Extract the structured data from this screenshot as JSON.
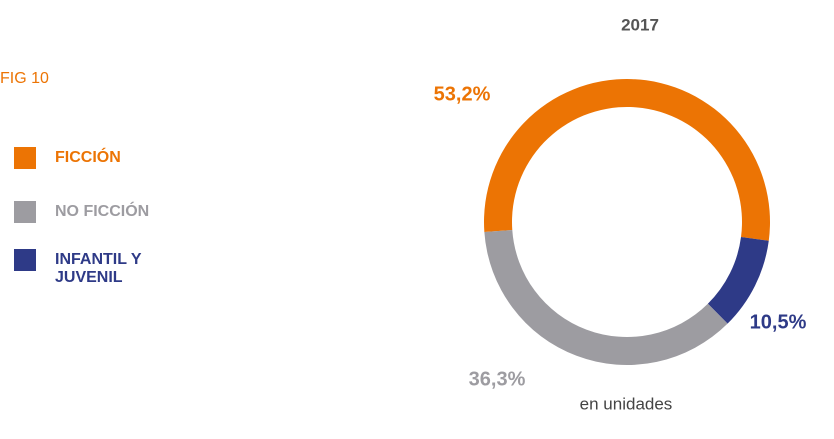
{
  "chart_data": {
    "type": "donut",
    "title": "2017",
    "figure_label": "FIG 10",
    "note": "en unidades",
    "categories": [
      "FICCIÓN",
      "NO FICCIÓN",
      "INFANTIL Y JUVENIL"
    ],
    "values": [
      53.2,
      36.3,
      10.5
    ],
    "value_labels": [
      "53,2%",
      "36,3%",
      "10,5%"
    ],
    "colors": [
      "#ec7404",
      "#9d9ca1",
      "#2e3a87"
    ]
  }
}
